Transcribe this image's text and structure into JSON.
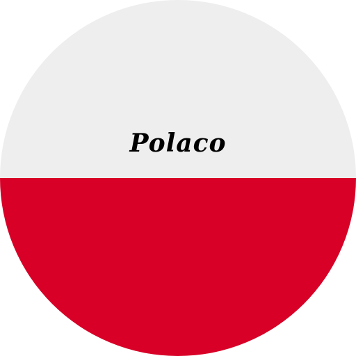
{
  "flag": {
    "label": "Polaco",
    "colors": {
      "top": "#eeeeee",
      "bottom": "#d80027",
      "text": "#000000"
    }
  }
}
